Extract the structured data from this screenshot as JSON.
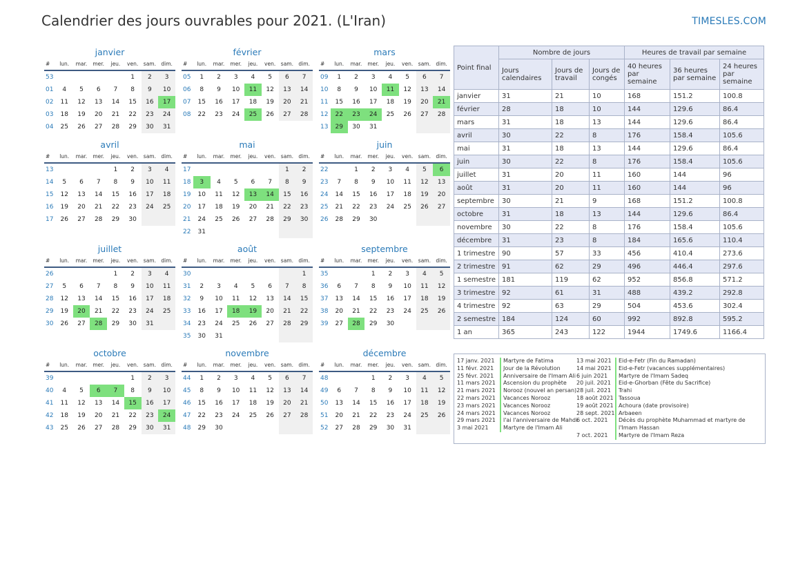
{
  "title": "Calendrier des jours ouvrables pour 2021. (L'Iran)",
  "site": "TIMESLES.COM",
  "day_headers": [
    "#",
    "lun.",
    "mar.",
    "mer.",
    "jeu.",
    "ven.",
    "sam.",
    "dim."
  ],
  "months": [
    {
      "name": "janvier",
      "weeks": [
        [
          "53",
          "",
          "",
          "",
          "",
          "1",
          "2",
          "3"
        ],
        [
          "01",
          "4",
          "5",
          "6",
          "7",
          "8",
          "9",
          "10"
        ],
        [
          "02",
          "11",
          "12",
          "13",
          "14",
          "15",
          "16",
          "17"
        ],
        [
          "03",
          "18",
          "19",
          "20",
          "21",
          "22",
          "23",
          "24"
        ],
        [
          "04",
          "25",
          "26",
          "27",
          "28",
          "29",
          "30",
          "31"
        ]
      ],
      "holidays": [
        "17"
      ]
    },
    {
      "name": "février",
      "weeks": [
        [
          "05",
          "1",
          "2",
          "3",
          "4",
          "5",
          "6",
          "7"
        ],
        [
          "06",
          "8",
          "9",
          "10",
          "11",
          "12",
          "13",
          "14"
        ],
        [
          "07",
          "15",
          "16",
          "17",
          "18",
          "19",
          "20",
          "21"
        ],
        [
          "08",
          "22",
          "23",
          "24",
          "25",
          "26",
          "27",
          "28"
        ]
      ],
      "holidays": [
        "11",
        "25"
      ]
    },
    {
      "name": "mars",
      "weeks": [
        [
          "09",
          "1",
          "2",
          "3",
          "4",
          "5",
          "6",
          "7"
        ],
        [
          "10",
          "8",
          "9",
          "10",
          "11",
          "12",
          "13",
          "14"
        ],
        [
          "11",
          "15",
          "16",
          "17",
          "18",
          "19",
          "20",
          "21"
        ],
        [
          "12",
          "22",
          "23",
          "24",
          "25",
          "26",
          "27",
          "28"
        ],
        [
          "13",
          "29",
          "30",
          "31",
          "",
          "",
          "",
          ""
        ]
      ],
      "holidays": [
        "11",
        "21",
        "22",
        "23",
        "24",
        "29"
      ]
    },
    {
      "name": "avril",
      "weeks": [
        [
          "13",
          "",
          "",
          "",
          "1",
          "2",
          "3",
          "4"
        ],
        [
          "14",
          "5",
          "6",
          "7",
          "8",
          "9",
          "10",
          "11"
        ],
        [
          "15",
          "12",
          "13",
          "14",
          "15",
          "16",
          "17",
          "18"
        ],
        [
          "16",
          "19",
          "20",
          "21",
          "22",
          "23",
          "24",
          "25"
        ],
        [
          "17",
          "26",
          "27",
          "28",
          "29",
          "30",
          "",
          ""
        ]
      ],
      "holidays": []
    },
    {
      "name": "mai",
      "weeks": [
        [
          "17",
          "",
          "",
          "",
          "",
          "",
          "1",
          "2"
        ],
        [
          "18",
          "3",
          "4",
          "5",
          "6",
          "7",
          "8",
          "9"
        ],
        [
          "19",
          "10",
          "11",
          "12",
          "13",
          "14",
          "15",
          "16"
        ],
        [
          "20",
          "17",
          "18",
          "19",
          "20",
          "21",
          "22",
          "23"
        ],
        [
          "21",
          "24",
          "25",
          "26",
          "27",
          "28",
          "29",
          "30"
        ],
        [
          "22",
          "31",
          "",
          "",
          "",
          "",
          "",
          ""
        ]
      ],
      "holidays": [
        "3",
        "13",
        "14"
      ]
    },
    {
      "name": "juin",
      "weeks": [
        [
          "22",
          "",
          "1",
          "2",
          "3",
          "4",
          "5",
          "6"
        ],
        [
          "23",
          "7",
          "8",
          "9",
          "10",
          "11",
          "12",
          "13"
        ],
        [
          "24",
          "14",
          "15",
          "16",
          "17",
          "18",
          "19",
          "20"
        ],
        [
          "25",
          "21",
          "22",
          "23",
          "24",
          "25",
          "26",
          "27"
        ],
        [
          "26",
          "28",
          "29",
          "30",
          "",
          "",
          "",
          ""
        ]
      ],
      "holidays": [
        "6"
      ]
    },
    {
      "name": "juillet",
      "weeks": [
        [
          "26",
          "",
          "",
          "",
          "1",
          "2",
          "3",
          "4"
        ],
        [
          "27",
          "5",
          "6",
          "7",
          "8",
          "9",
          "10",
          "11"
        ],
        [
          "28",
          "12",
          "13",
          "14",
          "15",
          "16",
          "17",
          "18"
        ],
        [
          "29",
          "19",
          "20",
          "21",
          "22",
          "23",
          "24",
          "25"
        ],
        [
          "30",
          "26",
          "27",
          "28",
          "29",
          "30",
          "31",
          ""
        ]
      ],
      "holidays": [
        "20",
        "28"
      ]
    },
    {
      "name": "août",
      "weeks": [
        [
          "30",
          "",
          "",
          "",
          "",
          "",
          "",
          "1"
        ],
        [
          "31",
          "2",
          "3",
          "4",
          "5",
          "6",
          "7",
          "8"
        ],
        [
          "32",
          "9",
          "10",
          "11",
          "12",
          "13",
          "14",
          "15"
        ],
        [
          "33",
          "16",
          "17",
          "18",
          "19",
          "20",
          "21",
          "22"
        ],
        [
          "34",
          "23",
          "24",
          "25",
          "26",
          "27",
          "28",
          "29"
        ],
        [
          "35",
          "30",
          "31",
          "",
          "",
          "",
          "",
          ""
        ]
      ],
      "holidays": [
        "18",
        "19"
      ]
    },
    {
      "name": "septembre",
      "weeks": [
        [
          "35",
          "",
          "",
          "1",
          "2",
          "3",
          "4",
          "5"
        ],
        [
          "36",
          "6",
          "7",
          "8",
          "9",
          "10",
          "11",
          "12"
        ],
        [
          "37",
          "13",
          "14",
          "15",
          "16",
          "17",
          "18",
          "19"
        ],
        [
          "38",
          "20",
          "21",
          "22",
          "23",
          "24",
          "25",
          "26"
        ],
        [
          "39",
          "27",
          "28",
          "29",
          "30",
          "",
          "",
          ""
        ]
      ],
      "holidays": [
        "28"
      ]
    },
    {
      "name": "octobre",
      "weeks": [
        [
          "39",
          "",
          "",
          "",
          "",
          "1",
          "2",
          "3"
        ],
        [
          "40",
          "4",
          "5",
          "6",
          "7",
          "8",
          "9",
          "10"
        ],
        [
          "41",
          "11",
          "12",
          "13",
          "14",
          "15",
          "16",
          "17"
        ],
        [
          "42",
          "18",
          "19",
          "20",
          "21",
          "22",
          "23",
          "24"
        ],
        [
          "43",
          "25",
          "26",
          "27",
          "28",
          "29",
          "30",
          "31"
        ]
      ],
      "holidays": [
        "6",
        "7",
        "15",
        "24"
      ]
    },
    {
      "name": "novembre",
      "weeks": [
        [
          "44",
          "1",
          "2",
          "3",
          "4",
          "5",
          "6",
          "7"
        ],
        [
          "45",
          "8",
          "9",
          "10",
          "11",
          "12",
          "13",
          "14"
        ],
        [
          "46",
          "15",
          "16",
          "17",
          "18",
          "19",
          "20",
          "21"
        ],
        [
          "47",
          "22",
          "23",
          "24",
          "25",
          "26",
          "27",
          "28"
        ],
        [
          "48",
          "29",
          "30",
          "",
          "",
          "",
          "",
          ""
        ]
      ],
      "holidays": []
    },
    {
      "name": "décembre",
      "weeks": [
        [
          "48",
          "",
          "",
          "1",
          "2",
          "3",
          "4",
          "5"
        ],
        [
          "49",
          "6",
          "7",
          "8",
          "9",
          "10",
          "11",
          "12"
        ],
        [
          "50",
          "13",
          "14",
          "15",
          "16",
          "17",
          "18",
          "19"
        ],
        [
          "51",
          "20",
          "21",
          "22",
          "23",
          "24",
          "25",
          "26"
        ],
        [
          "52",
          "27",
          "28",
          "29",
          "30",
          "31",
          "",
          ""
        ]
      ],
      "holidays": []
    }
  ],
  "stats": {
    "col_period": "Point final",
    "group_days": "Nombre de jours",
    "group_hours": "Heures de travail par semaine",
    "col_cal": "Jours calendaires",
    "col_work": "Jours de travail",
    "col_off": "Jours de congés",
    "col_40": "40 heures par semaine",
    "col_36": "36 heures par semaine",
    "col_24": "24 heures par semaine",
    "rows": [
      [
        "janvier",
        "31",
        "21",
        "10",
        "168",
        "151.2",
        "100.8"
      ],
      [
        "février",
        "28",
        "18",
        "10",
        "144",
        "129.6",
        "86.4"
      ],
      [
        "mars",
        "31",
        "18",
        "13",
        "144",
        "129.6",
        "86.4"
      ],
      [
        "avril",
        "30",
        "22",
        "8",
        "176",
        "158.4",
        "105.6"
      ],
      [
        "mai",
        "31",
        "18",
        "13",
        "144",
        "129.6",
        "86.4"
      ],
      [
        "juin",
        "30",
        "22",
        "8",
        "176",
        "158.4",
        "105.6"
      ],
      [
        "juillet",
        "31",
        "20",
        "11",
        "160",
        "144",
        "96"
      ],
      [
        "août",
        "31",
        "20",
        "11",
        "160",
        "144",
        "96"
      ],
      [
        "septembre",
        "30",
        "21",
        "9",
        "168",
        "151.2",
        "100.8"
      ],
      [
        "octobre",
        "31",
        "18",
        "13",
        "144",
        "129.6",
        "86.4"
      ],
      [
        "novembre",
        "30",
        "22",
        "8",
        "176",
        "158.4",
        "105.6"
      ],
      [
        "décembre",
        "31",
        "23",
        "8",
        "184",
        "165.6",
        "110.4"
      ],
      [
        "1 trimestre",
        "90",
        "57",
        "33",
        "456",
        "410.4",
        "273.6"
      ],
      [
        "2 trimestre",
        "91",
        "62",
        "29",
        "496",
        "446.4",
        "297.6"
      ],
      [
        "1 semestre",
        "181",
        "119",
        "62",
        "952",
        "856.8",
        "571.2"
      ],
      [
        "3 trimestre",
        "92",
        "61",
        "31",
        "488",
        "439.2",
        "292.8"
      ],
      [
        "4 trimestre",
        "92",
        "63",
        "29",
        "504",
        "453.6",
        "302.4"
      ],
      [
        "2 semestre",
        "184",
        "124",
        "60",
        "992",
        "892.8",
        "595.2"
      ],
      [
        "1 an",
        "365",
        "243",
        "122",
        "1944",
        "1749.6",
        "1166.4"
      ]
    ]
  },
  "holidays_left": [
    [
      "17 janv. 2021",
      "Martyre de Fatima"
    ],
    [
      "11 févr. 2021",
      "Jour de la Révolution"
    ],
    [
      "25 févr. 2021",
      "Anniversaire de l'Imam Ali"
    ],
    [
      "11 mars 2021",
      "Ascension du prophète"
    ],
    [
      "21 mars 2021",
      "Norooz (nouvel an persan)"
    ],
    [
      "22 mars 2021",
      "Vacances Norooz"
    ],
    [
      "23 mars 2021",
      "Vacances Norooz"
    ],
    [
      "24 mars 2021",
      "Vacances Norooz"
    ],
    [
      "29 mars 2021",
      "l'ai l'anniversaire de Mahdi"
    ],
    [
      "3 mai 2021",
      "Martyre de l'Imam Ali"
    ]
  ],
  "holidays_right": [
    [
      "13 mai 2021",
      "Eid-e-Fetr (Fin du Ramadan)"
    ],
    [
      "14 mai 2021",
      "Eid-e-Fetr (vacances supplémentaires)"
    ],
    [
      "6 juin 2021",
      "Martyre de l'Imam Sadeq"
    ],
    [
      "20 juil. 2021",
      "Eid-e-Ghorban (Fête du Sacrifice)"
    ],
    [
      "28 juil. 2021",
      "Trahi"
    ],
    [
      "18 août 2021",
      "Tassoua"
    ],
    [
      "19 août 2021",
      "Achoura (date provisoire)"
    ],
    [
      "28 sept. 2021",
      "Arbaeen"
    ],
    [
      "6 oct. 2021",
      "Décès du prophète Muhammad et martyre de l'Imam Hassan"
    ],
    [
      "7 oct. 2021",
      "Martyre de l'Imam Reza"
    ]
  ]
}
